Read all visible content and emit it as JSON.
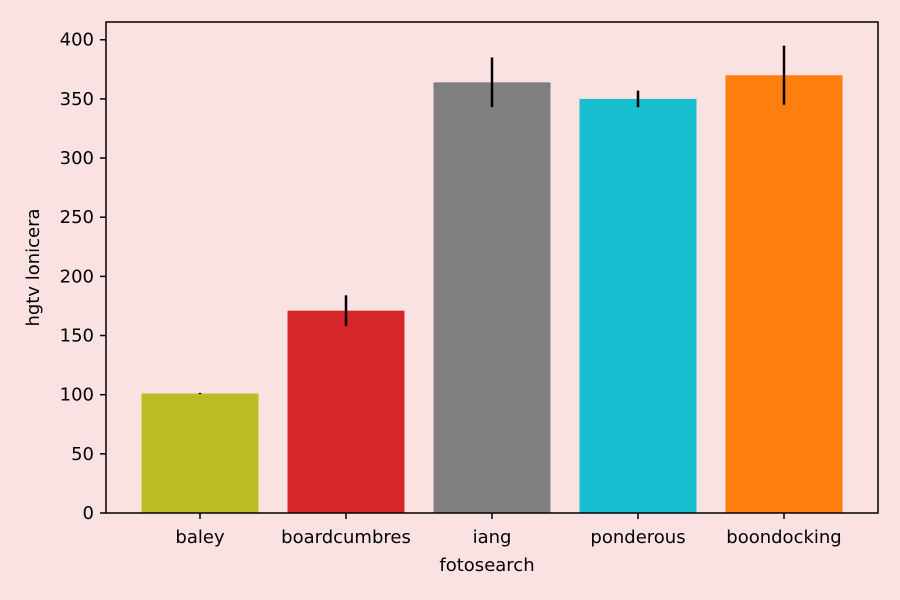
{
  "chart_data": {
    "type": "bar",
    "title": "",
    "xlabel": "fotosearch",
    "ylabel": "hgtv lonicera",
    "ylim": [
      0,
      415
    ],
    "yticks": [
      0,
      50,
      100,
      150,
      200,
      250,
      300,
      350,
      400
    ],
    "ytick_labels": [
      "0",
      "50",
      "100",
      "150",
      "200",
      "250",
      "300",
      "350",
      "400"
    ],
    "categories": [
      "baley",
      "boardcumbres",
      "iang",
      "ponderous",
      "boondocking"
    ],
    "values": [
      101,
      171,
      364,
      350,
      370
    ],
    "errors": [
      0.5,
      13,
      21,
      7,
      25
    ],
    "colors": [
      "#bcbd22",
      "#d62728",
      "#7f7f7f",
      "#17becf",
      "#ff7f0e"
    ],
    "grid": false,
    "legend": "none"
  },
  "style": {
    "background": "#fae2e3",
    "plot_background": "#fae2e3",
    "axis_color": "#000000",
    "error_bar_color": "#000000"
  }
}
